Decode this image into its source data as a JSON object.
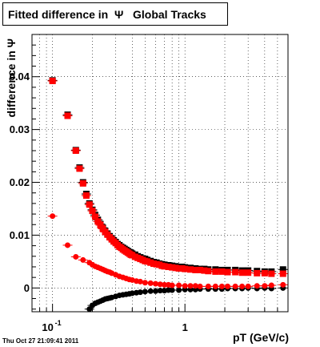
{
  "chart_data": {
    "type": "scatter",
    "title": "Fitted difference in  Ψ   Global Tracks",
    "xlabel": "pT (GeV/c)",
    "ylabel": "difference in Ψ",
    "x_scale": "log",
    "xlim": [
      0.07,
      6.0
    ],
    "ylim": [
      -0.0045,
      0.048
    ],
    "grid": true,
    "x_tick_labels": [
      {
        "value": 0.1,
        "label": "10",
        "exponent": "-1"
      },
      {
        "value": 1,
        "label": "1",
        "exponent": ""
      }
    ],
    "y_ticks": [
      {
        "value": 0,
        "label": "0"
      },
      {
        "value": 0.01,
        "label": "0.01"
      },
      {
        "value": 0.02,
        "label": "0.02"
      },
      {
        "value": 0.03,
        "label": "0.03"
      },
      {
        "value": 0.04,
        "label": "0.04"
      }
    ],
    "colors": {
      "black": "#000000",
      "red": "#ff0000"
    },
    "series": [
      {
        "color": "black",
        "marker": "square",
        "x": [
          0.1,
          0.13,
          0.15,
          0.16,
          0.17,
          0.18,
          0.19,
          0.2,
          0.21,
          0.22,
          0.23,
          0.24,
          0.25,
          0.26,
          0.27,
          0.28,
          0.29,
          0.3,
          0.31,
          0.32,
          0.33,
          0.34,
          0.35,
          0.36,
          0.37,
          0.38,
          0.39,
          0.4,
          0.42,
          0.44,
          0.46,
          0.48,
          0.5,
          0.52,
          0.55,
          0.58,
          0.61,
          0.64,
          0.67,
          0.7,
          0.75,
          0.8,
          0.85,
          0.9,
          0.95,
          1.0,
          1.1,
          1.2,
          1.3,
          1.4,
          1.5,
          1.7,
          1.9,
          2.1,
          2.4,
          2.7,
          3.0,
          3.5,
          4.0,
          4.5,
          5.5
        ],
        "y": [
          0.0393,
          0.0328,
          0.0261,
          0.0228,
          0.02,
          0.0178,
          0.016,
          0.0148,
          0.0138,
          0.0129,
          0.0121,
          0.0114,
          0.0108,
          0.0103,
          0.0098,
          0.0094,
          0.009,
          0.0087,
          0.0083,
          0.0081,
          0.0078,
          0.0076,
          0.0074,
          0.0072,
          0.007,
          0.0068,
          0.0067,
          0.0065,
          0.0063,
          0.006,
          0.0058,
          0.0056,
          0.0055,
          0.0053,
          0.0051,
          0.0049,
          0.0048,
          0.0046,
          0.0045,
          0.0044,
          0.0043,
          0.0042,
          0.0041,
          0.004,
          0.004,
          0.0039,
          0.0038,
          0.0037,
          0.0036,
          0.0036,
          0.0035,
          0.0035,
          0.0034,
          0.0034,
          0.0034,
          0.0033,
          0.0033,
          0.0032,
          0.0031,
          0.0031,
          0.0035
        ]
      },
      {
        "color": "red",
        "marker": "square",
        "x": [
          0.1,
          0.13,
          0.15,
          0.16,
          0.17,
          0.18,
          0.19,
          0.2,
          0.21,
          0.22,
          0.23,
          0.24,
          0.25,
          0.26,
          0.27,
          0.28,
          0.29,
          0.3,
          0.31,
          0.32,
          0.33,
          0.34,
          0.35,
          0.36,
          0.37,
          0.38,
          0.39,
          0.4,
          0.42,
          0.44,
          0.46,
          0.48,
          0.5,
          0.52,
          0.55,
          0.58,
          0.61,
          0.64,
          0.67,
          0.7,
          0.75,
          0.8,
          0.85,
          0.9,
          0.95,
          1.0,
          1.1,
          1.2,
          1.3,
          1.4,
          1.5,
          1.7,
          1.9,
          2.1,
          2.4,
          2.7,
          3.0,
          3.5,
          4.0,
          4.5,
          5.5
        ],
        "y": [
          0.0392,
          0.0326,
          0.026,
          0.0226,
          0.0198,
          0.0175,
          0.0158,
          0.0146,
          0.0135,
          0.0126,
          0.0119,
          0.0112,
          0.0106,
          0.0101,
          0.0096,
          0.0092,
          0.0088,
          0.0085,
          0.0081,
          0.0078,
          0.0076,
          0.0073,
          0.0071,
          0.0069,
          0.0067,
          0.0065,
          0.0063,
          0.0062,
          0.0059,
          0.0057,
          0.0055,
          0.0053,
          0.0051,
          0.005,
          0.0048,
          0.0046,
          0.0045,
          0.0044,
          0.0042,
          0.0041,
          0.004,
          0.0039,
          0.0038,
          0.0037,
          0.0037,
          0.0036,
          0.0035,
          0.0034,
          0.0034,
          0.0033,
          0.0032,
          0.0031,
          0.0031,
          0.003,
          0.003,
          0.0029,
          0.0029,
          0.0028,
          0.0028,
          0.0027,
          0.0027
        ]
      },
      {
        "color": "black",
        "marker": "circle",
        "x": [
          0.19,
          0.2,
          0.21,
          0.22,
          0.23,
          0.24,
          0.25,
          0.26,
          0.27,
          0.28,
          0.3,
          0.32,
          0.34,
          0.36,
          0.38,
          0.4,
          0.43,
          0.46,
          0.5,
          0.55,
          0.6,
          0.65,
          0.7,
          0.75,
          0.8,
          0.9,
          1.0,
          1.1,
          1.2,
          1.3,
          1.5,
          1.7,
          1.9,
          2.1,
          2.4,
          2.7,
          3.0,
          3.5,
          4.0,
          4.5,
          5.5
        ],
        "y": [
          -0.004,
          -0.0033,
          -0.0029,
          -0.0027,
          -0.0025,
          -0.0023,
          -0.0021,
          -0.002,
          -0.0019,
          -0.0018,
          -0.0016,
          -0.0014,
          -0.0013,
          -0.0012,
          -0.0011,
          -0.001,
          -0.0009,
          -0.0008,
          -0.0007,
          -0.0006,
          -0.0006,
          -0.0005,
          -0.0005,
          -0.0004,
          -0.0004,
          -0.0004,
          -0.0003,
          -0.0003,
          -0.0003,
          -0.0002,
          -0.0002,
          -0.0002,
          -0.0002,
          -0.0001,
          -0.0001,
          -0.0001,
          0.0,
          -0.0001,
          0.0,
          -0.0001,
          0.0
        ]
      },
      {
        "color": "red",
        "marker": "circle",
        "x": [
          0.1,
          0.13,
          0.15,
          0.17,
          0.19,
          0.2,
          0.21,
          0.22,
          0.23,
          0.24,
          0.25,
          0.26,
          0.27,
          0.28,
          0.3,
          0.32,
          0.34,
          0.36,
          0.38,
          0.4,
          0.43,
          0.46,
          0.5,
          0.55,
          0.6,
          0.65,
          0.7,
          0.75,
          0.8,
          0.9,
          1.0,
          1.1,
          1.2,
          1.3,
          1.5,
          1.7,
          1.9,
          2.1,
          2.4,
          2.7,
          3.0,
          3.5,
          4.0,
          4.5,
          5.5
        ],
        "y": [
          0.0136,
          0.0081,
          0.0059,
          0.0053,
          0.0048,
          0.0044,
          0.0041,
          0.0039,
          0.0037,
          0.0035,
          0.0033,
          0.0031,
          0.003,
          0.0028,
          0.0025,
          0.0022,
          0.002,
          0.0018,
          0.0016,
          0.0015,
          0.0013,
          0.0012,
          0.001,
          0.0009,
          0.0008,
          0.0007,
          0.0006,
          0.0006,
          0.0005,
          0.0005,
          0.0004,
          0.0004,
          0.0004,
          0.0003,
          0.0003,
          0.0003,
          0.0003,
          0.0003,
          0.0003,
          0.0003,
          0.0003,
          0.0004,
          0.0004,
          0.0005,
          0.0006
        ]
      }
    ]
  },
  "stamp": "Thu Oct 27 21:09:41 2011"
}
